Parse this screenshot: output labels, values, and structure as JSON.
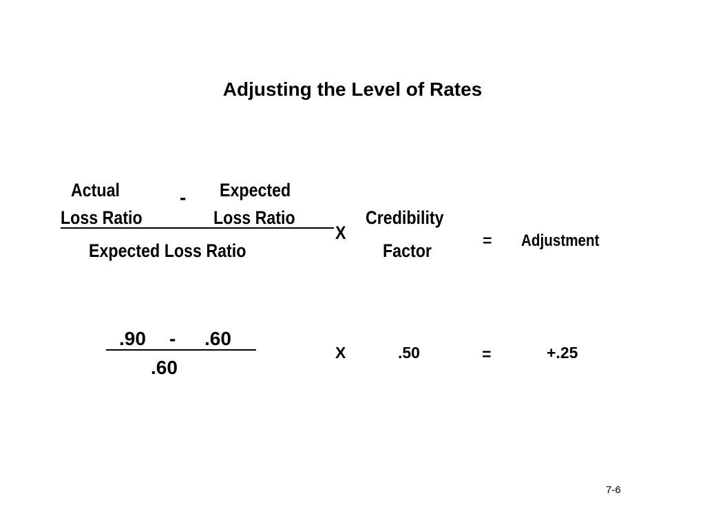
{
  "slide": {
    "title": "Adjusting the Level of Rates",
    "page_number": "7-6"
  },
  "formula": {
    "numerator_left_line1": "Actual",
    "numerator_left_line2": "Loss Ratio",
    "minus": "-",
    "numerator_right_line1": "Expected",
    "numerator_right_line2": "Loss Ratio",
    "denominator": "Expected Loss Ratio",
    "times": "X",
    "factor_line1": "Credibility",
    "factor_line2": "Factor",
    "equals": "=",
    "result": "Adjustment"
  },
  "example": {
    "numerator_a": ".90",
    "minus": "-",
    "numerator_b": ".60",
    "denominator": ".60",
    "times": "X",
    "factor": ".50",
    "equals": "=",
    "result": "+.25"
  }
}
